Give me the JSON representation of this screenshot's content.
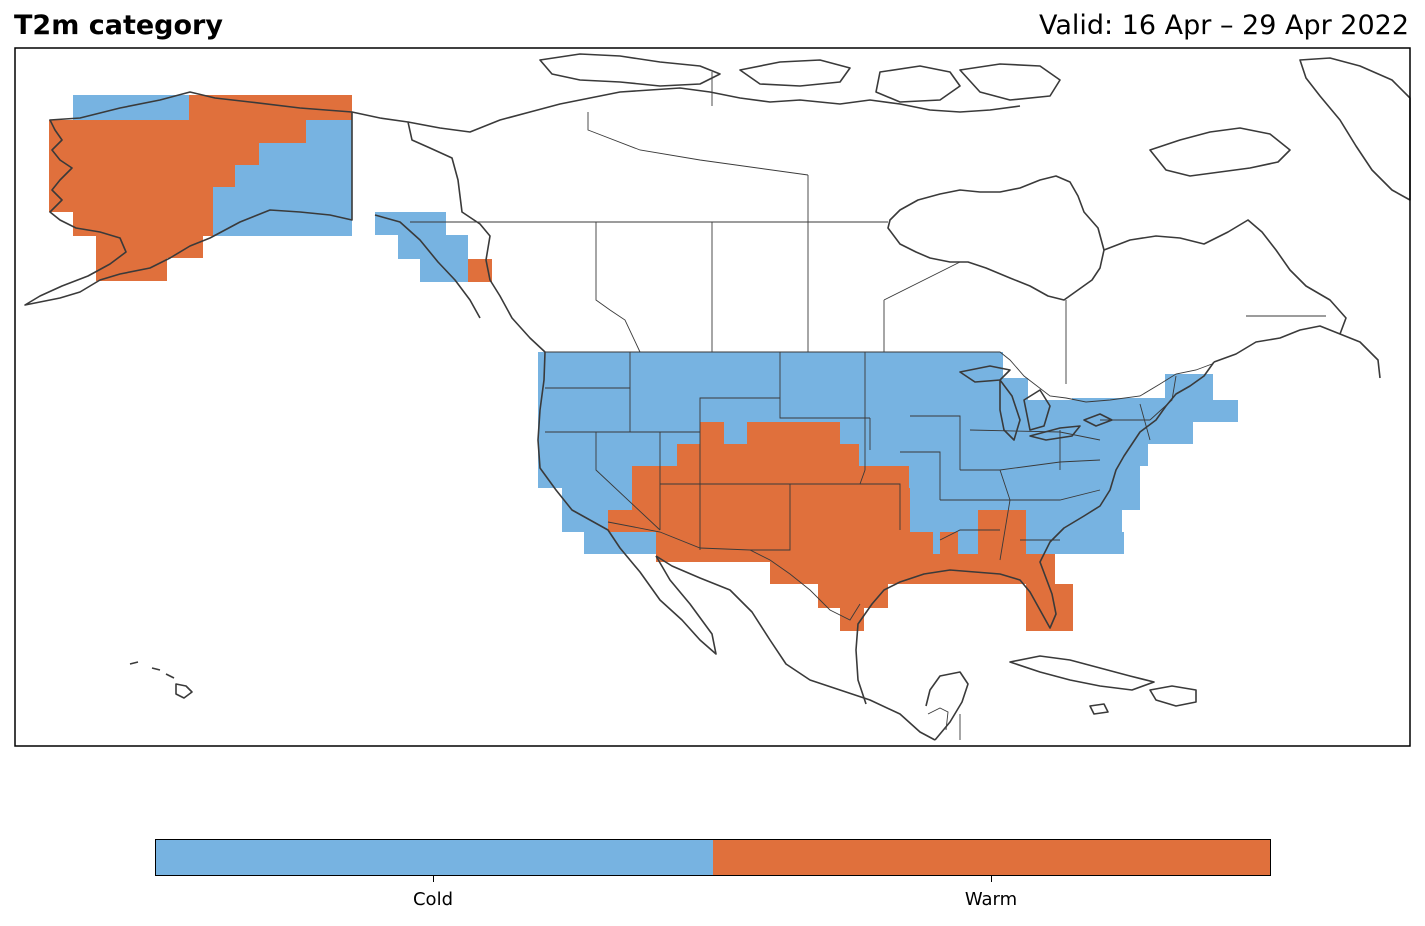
{
  "header": {
    "title": "T2m category",
    "valid": "Valid: 16 Apr – 29 Apr 2022"
  },
  "legend": {
    "items": [
      {
        "label": "Cold",
        "color": "#77b3e1"
      },
      {
        "label": "Warm",
        "color": "#e0703c"
      }
    ]
  },
  "map_style": {
    "coastline_color": "#3a3a3a",
    "background": "#ffffff"
  }
}
